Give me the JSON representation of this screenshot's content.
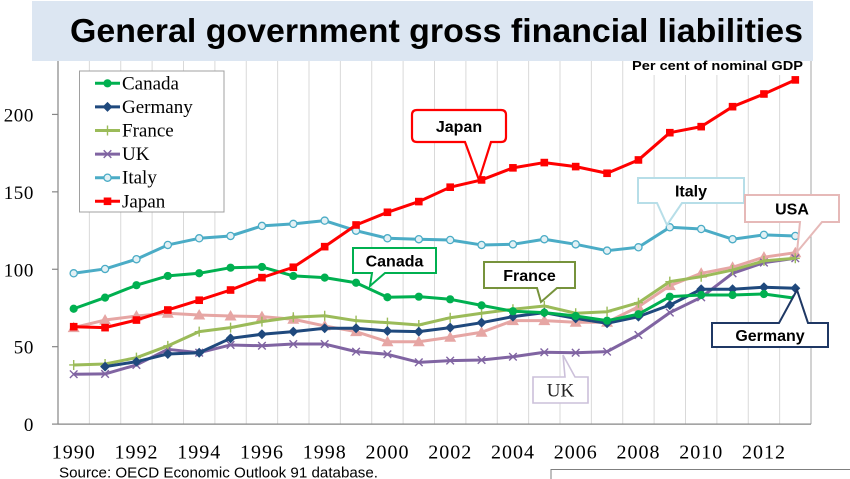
{
  "chart_data": {
    "type": "line",
    "title": "General government gross financial liabilities",
    "subtitle": "Per cent of nominal GDP",
    "source": "Source: OECD Economic Outlook 91 database.",
    "xlabel": "",
    "ylabel": "",
    "x": [
      1990,
      1991,
      1992,
      1993,
      1994,
      1995,
      1996,
      1997,
      1998,
      1999,
      2000,
      2001,
      2002,
      2003,
      2004,
      2005,
      2006,
      2007,
      2008,
      2009,
      2010,
      2011,
      2012,
      2013
    ],
    "x_tick_labels": [
      "1990",
      "1992",
      "1994",
      "1996",
      "1998",
      "2000",
      "2002",
      "2004",
      "2006",
      "2008",
      "2010",
      "2012"
    ],
    "y_ticks": [
      0,
      50,
      100,
      150,
      200
    ],
    "ylim": [
      0,
      250
    ],
    "grid": {
      "vertical": true,
      "horizontal": false
    },
    "legend": {
      "placement": "top-left",
      "entries": [
        "Canada",
        "Germany",
        "France",
        "UK",
        "Italy",
        "Japan"
      ]
    },
    "series": [
      {
        "name": "USA",
        "color": "#E6A6A4",
        "marker": "triangle",
        "values": [
          62.3,
          67.2,
          69.8,
          71.6,
          70.5,
          69.8,
          69.4,
          67.7,
          63.4,
          59.7,
          53.2,
          53.2,
          56.1,
          59.3,
          66.8,
          66.8,
          65.8,
          65.8,
          75.8,
          89.4,
          97.4,
          101.3,
          107.8,
          110.7
        ]
      },
      {
        "name": "UK",
        "color": "#8064A2",
        "marker": "x",
        "values": [
          32.2,
          32.4,
          38.2,
          48.3,
          46.1,
          51.1,
          50.6,
          51.7,
          51.7,
          46.8,
          45.1,
          39.9,
          41.0,
          41.4,
          43.5,
          46.4,
          46.1,
          46.8,
          57.6,
          72.0,
          81.9,
          97.4,
          104.3,
          107.1
        ]
      },
      {
        "name": "France",
        "color": "#9BBB59",
        "marker": "plus",
        "values": [
          38.2,
          38.8,
          42.9,
          50.5,
          59.7,
          62.3,
          66.2,
          69.0,
          70.0,
          66.8,
          65.5,
          64.0,
          68.7,
          71.6,
          74.2,
          76.3,
          71.6,
          72.6,
          78.4,
          92.0,
          95.2,
          99.5,
          105.4,
          107.1
        ]
      },
      {
        "name": "Germany",
        "color": "#1F497D",
        "marker": "diamond",
        "values": [
          null,
          37.1,
          40.3,
          45.3,
          46.1,
          55.4,
          58.0,
          59.7,
          61.9,
          61.9,
          60.1,
          59.7,
          62.3,
          65.5,
          69.4,
          72.0,
          68.3,
          65.1,
          69.4,
          76.9,
          87.1,
          87.1,
          88.4,
          87.7
        ]
      },
      {
        "name": "Canada",
        "color": "#00B050",
        "marker": "circle",
        "values": [
          74.5,
          81.7,
          89.7,
          95.7,
          97.4,
          101.0,
          101.5,
          95.7,
          94.6,
          91.3,
          81.9,
          82.3,
          80.6,
          76.7,
          72.9,
          72.0,
          69.8,
          66.8,
          71.0,
          82.3,
          83.4,
          83.4,
          84.0,
          81.3
        ]
      },
      {
        "name": "Italy",
        "color": "#4BACC6",
        "marker": "open-circle",
        "values": [
          97.4,
          100.2,
          106.5,
          115.7,
          120.0,
          121.5,
          128.0,
          129.3,
          131.4,
          124.9,
          120.0,
          119.4,
          118.9,
          115.7,
          116.1,
          119.4,
          116.1,
          112.0,
          114.2,
          127.1,
          126.0,
          119.4,
          122.2,
          121.5
        ]
      },
      {
        "name": "Japan",
        "color": "#FF0000",
        "marker": "square",
        "values": [
          62.9,
          62.3,
          67.2,
          73.7,
          80.0,
          86.6,
          94.6,
          101.3,
          114.6,
          128.6,
          136.8,
          143.7,
          153.0,
          157.7,
          165.5,
          168.9,
          166.3,
          162.0,
          170.6,
          188.2,
          192.1,
          205.0,
          213.2,
          222.3
        ]
      }
    ],
    "annotations": [
      {
        "text": "Japan",
        "series": "Japan",
        "border_color": "#FF0000"
      },
      {
        "text": "Canada",
        "series": "Canada",
        "border_color": "#00B050"
      },
      {
        "text": "France",
        "series": "France",
        "border_color": "#77933C"
      },
      {
        "text": "Italy",
        "series": "Italy",
        "border_color": "#B7DEE8"
      },
      {
        "text": "USA",
        "series": "USA",
        "border_color": "#E6B9B8"
      },
      {
        "text": "Germany",
        "series": "Germany",
        "border_color": "#1F3864"
      },
      {
        "text": "UK",
        "series": "UK",
        "border_color": "#CCC0DA"
      }
    ]
  },
  "colors": {
    "title_background": "#DCE6F2",
    "gridline": "#D9D9D9",
    "axis": "#868686"
  }
}
